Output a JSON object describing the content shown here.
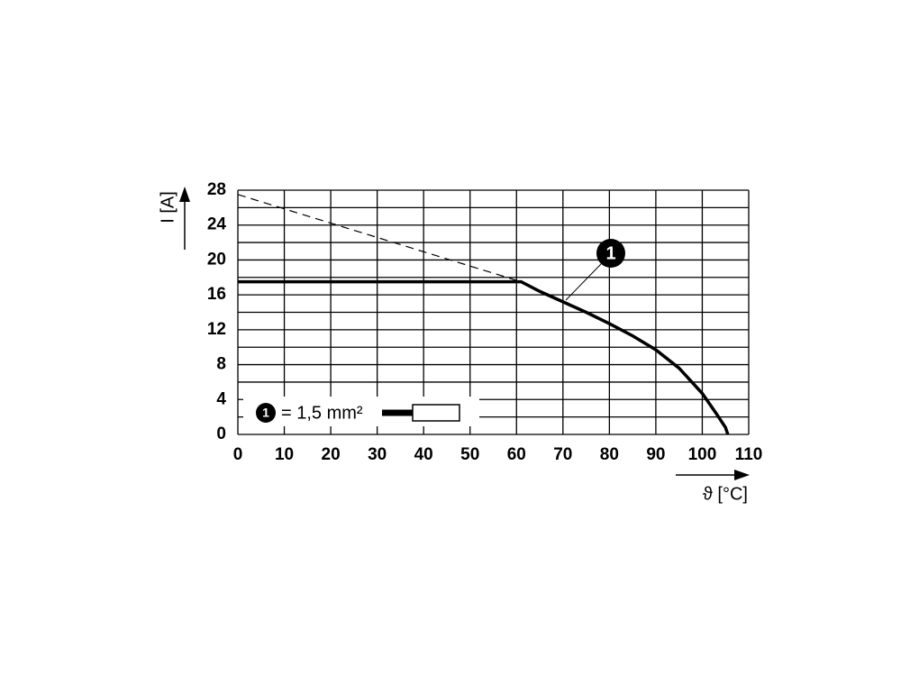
{
  "chart_data": {
    "type": "line",
    "xlabel": "ϑ [°C]",
    "ylabel": "I [A]",
    "xlim": [
      0,
      110
    ],
    "xticks": [
      0,
      10,
      20,
      30,
      40,
      50,
      60,
      70,
      80,
      90,
      100,
      110
    ],
    "ylim": [
      0,
      28
    ],
    "yticks": [
      0,
      4,
      8,
      12,
      16,
      20,
      24,
      28
    ],
    "yminor": [
      2,
      6,
      10,
      14,
      18,
      22,
      26
    ],
    "grid": true,
    "series": [
      {
        "name": "1",
        "color": "#000000",
        "style": "solid",
        "x": [
          0,
          61,
          65,
          70,
          75,
          80,
          85,
          90,
          95,
          100,
          103,
          105,
          105.5
        ],
        "values": [
          17.5,
          17.5,
          16.4,
          15.2,
          14,
          12.7,
          11.3,
          9.7,
          7.6,
          4.7,
          2.4,
          0.8,
          0
        ]
      },
      {
        "color": "#000000",
        "style": "dashed",
        "x": [
          0,
          61
        ],
        "values": [
          27.5,
          17.5
        ]
      }
    ],
    "legend": {
      "marker": "1",
      "text": "= 1,5 mm²"
    }
  }
}
